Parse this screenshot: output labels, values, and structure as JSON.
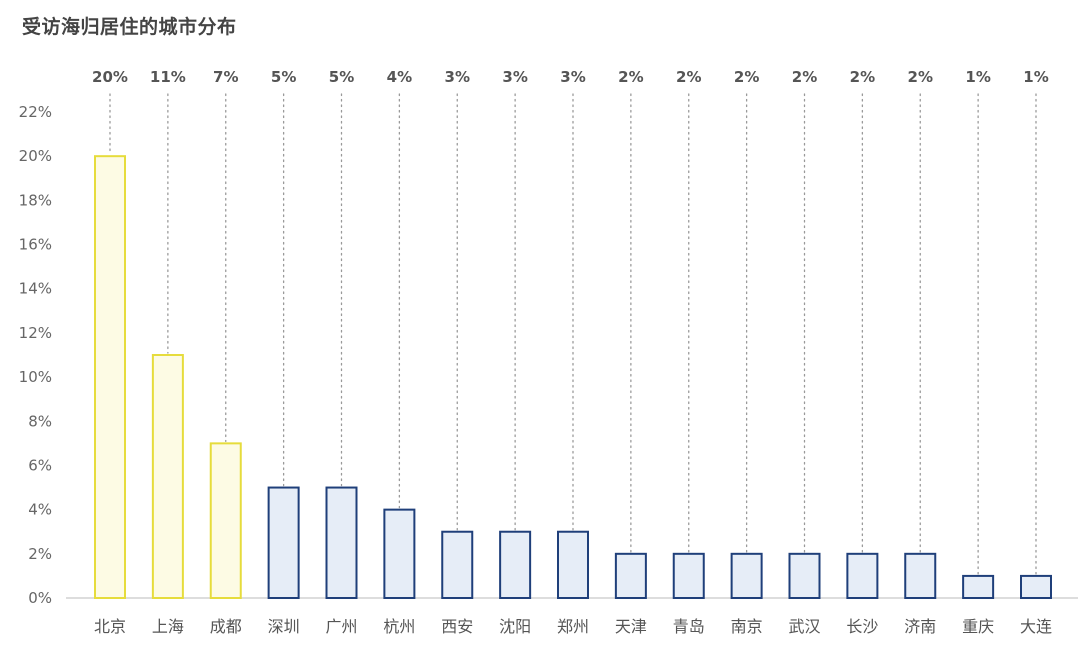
{
  "chart_data": {
    "type": "bar",
    "title": "受访海归居住的城市分布",
    "categories": [
      "北京",
      "上海",
      "成都",
      "深圳",
      "广州",
      "杭州",
      "西安",
      "沈阳",
      "郑州",
      "天津",
      "青岛",
      "南京",
      "武汉",
      "长沙",
      "济南",
      "重庆",
      "大连"
    ],
    "values": [
      20,
      11,
      7,
      5,
      5,
      4,
      3,
      3,
      3,
      2,
      2,
      2,
      2,
      2,
      2,
      1,
      1
    ],
    "data_labels": [
      "20%",
      "11%",
      "7%",
      "5%",
      "5%",
      "4%",
      "3%",
      "3%",
      "3%",
      "2%",
      "2%",
      "2%",
      "2%",
      "2%",
      "2%",
      "1%",
      "1%"
    ],
    "yticks": [
      "0%",
      "2%",
      "4%",
      "6%",
      "8%",
      "10%",
      "12%",
      "14%",
      "16%",
      "18%",
      "20%",
      "22%"
    ],
    "ylim": [
      0,
      22
    ],
    "highlight_count": 3,
    "colors": {
      "highlight_fill": "#fdfbe4",
      "highlight_stroke": "#e6dc3c",
      "normal_fill": "#e6edf7",
      "normal_stroke": "#1f3f7a",
      "axis": "#bbbbbb",
      "dots": "#999999"
    },
    "grid": false
  }
}
